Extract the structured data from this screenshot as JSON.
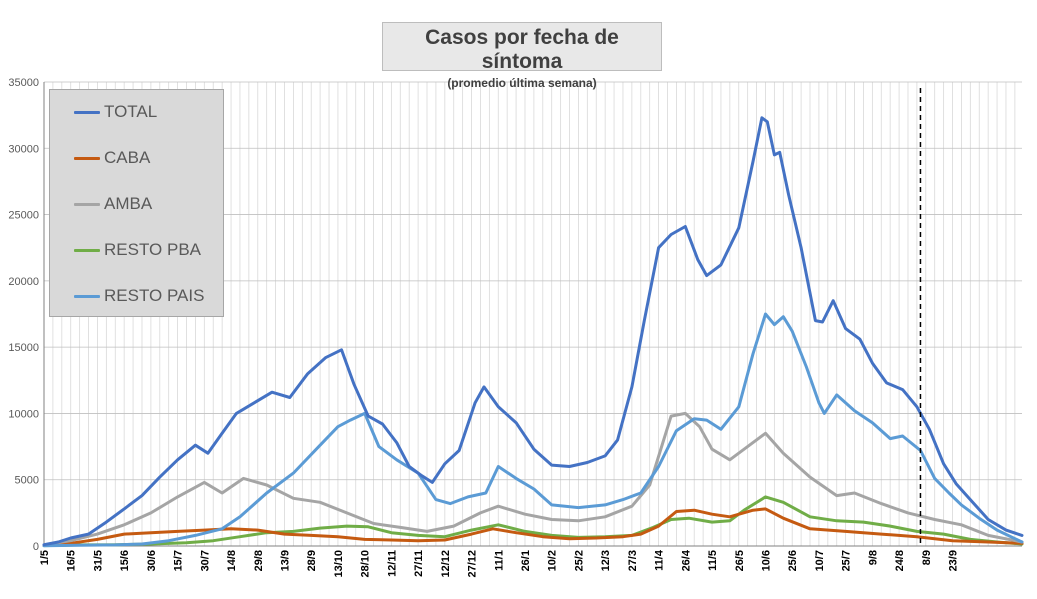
{
  "chart_data": {
    "type": "line",
    "title": "Casos por fecha de síntoma",
    "subtitle": "(promedio última semana)",
    "ylim": [
      0,
      35000
    ],
    "yticks": [
      0,
      5000,
      10000,
      15000,
      20000,
      25000,
      30000,
      35000
    ],
    "x_tick_labels": [
      "1/5",
      "16/5",
      "31/5",
      "15/6",
      "30/6",
      "15/7",
      "30/7",
      "14/8",
      "29/8",
      "13/9",
      "28/9",
      "13/10",
      "28/10",
      "12/11",
      "27/11",
      "12/12",
      "27/12",
      "11/1",
      "26/1",
      "10/2",
      "25/2",
      "12/3",
      "27/3",
      "11/4",
      "26/4",
      "11/5",
      "26/5",
      "10/6",
      "25/6",
      "10/7",
      "25/7",
      "9/8",
      "24/8",
      "8/9",
      "23/9"
    ],
    "x_unit": "days since 1/5",
    "x_range_days": [
      0,
      499
    ],
    "grid": true,
    "legend_position": "top-left",
    "marker_line_day": 492,
    "series": [
      {
        "name": "TOTAL",
        "color": "#4472c4",
        "points": [
          [
            0,
            100
          ],
          [
            8,
            300
          ],
          [
            15,
            600
          ],
          [
            25,
            900
          ],
          [
            35,
            1800
          ],
          [
            45,
            2800
          ],
          [
            55,
            3800
          ],
          [
            65,
            5200
          ],
          [
            75,
            6500
          ],
          [
            85,
            7600
          ],
          [
            92,
            7000
          ],
          [
            100,
            8500
          ],
          [
            108,
            10000
          ],
          [
            118,
            10800
          ],
          [
            128,
            11600
          ],
          [
            138,
            11200
          ],
          [
            148,
            13000
          ],
          [
            158,
            14200
          ],
          [
            167,
            14800
          ],
          [
            174,
            12200
          ],
          [
            182,
            9800
          ],
          [
            190,
            9200
          ],
          [
            198,
            7800
          ],
          [
            205,
            6000
          ],
          [
            212,
            5300
          ],
          [
            218,
            4800
          ],
          [
            225,
            6200
          ],
          [
            233,
            7200
          ],
          [
            242,
            10800
          ],
          [
            247,
            12000
          ],
          [
            255,
            10500
          ],
          [
            265,
            9300
          ],
          [
            275,
            7300
          ],
          [
            285,
            6100
          ],
          [
            295,
            6000
          ],
          [
            305,
            6300
          ],
          [
            315,
            6800
          ],
          [
            322,
            8000
          ],
          [
            330,
            12000
          ],
          [
            337,
            17000
          ],
          [
            345,
            22500
          ],
          [
            352,
            23500
          ],
          [
            360,
            24100
          ],
          [
            367,
            21600
          ],
          [
            372,
            20400
          ],
          [
            380,
            21200
          ],
          [
            390,
            24000
          ],
          [
            398,
            29000
          ],
          [
            403,
            32300
          ],
          [
            406,
            32000
          ],
          [
            410,
            29500
          ],
          [
            413,
            29700
          ],
          [
            418,
            26500
          ],
          [
            425,
            22500
          ],
          [
            433,
            17000
          ],
          [
            437,
            16900
          ],
          [
            443,
            18500
          ],
          [
            450,
            16400
          ],
          [
            458,
            15600
          ],
          [
            465,
            13800
          ],
          [
            473,
            12300
          ],
          [
            482,
            11800
          ],
          [
            490,
            10500
          ],
          [
            497,
            8800
          ],
          [
            505,
            6200
          ],
          [
            512,
            4700
          ],
          [
            520,
            3500
          ],
          [
            530,
            2000
          ],
          [
            540,
            1200
          ],
          [
            549,
            800
          ]
        ]
      },
      {
        "name": "CABA",
        "color": "#c55a11",
        "points": [
          [
            0,
            50
          ],
          [
            15,
            200
          ],
          [
            30,
            500
          ],
          [
            45,
            900
          ],
          [
            60,
            1000
          ],
          [
            75,
            1100
          ],
          [
            90,
            1200
          ],
          [
            105,
            1300
          ],
          [
            120,
            1200
          ],
          [
            135,
            900
          ],
          [
            150,
            800
          ],
          [
            165,
            700
          ],
          [
            180,
            500
          ],
          [
            195,
            450
          ],
          [
            210,
            400
          ],
          [
            225,
            450
          ],
          [
            240,
            900
          ],
          [
            252,
            1300
          ],
          [
            265,
            1000
          ],
          [
            280,
            700
          ],
          [
            295,
            550
          ],
          [
            310,
            600
          ],
          [
            325,
            700
          ],
          [
            335,
            900
          ],
          [
            345,
            1500
          ],
          [
            355,
            2600
          ],
          [
            365,
            2700
          ],
          [
            375,
            2400
          ],
          [
            385,
            2200
          ],
          [
            398,
            2700
          ],
          [
            405,
            2800
          ],
          [
            415,
            2100
          ],
          [
            430,
            1300
          ],
          [
            450,
            1100
          ],
          [
            470,
            900
          ],
          [
            490,
            700
          ],
          [
            510,
            400
          ],
          [
            530,
            300
          ],
          [
            549,
            200
          ]
        ]
      },
      {
        "name": "AMBA",
        "color": "#a5a5a5",
        "points": [
          [
            0,
            80
          ],
          [
            15,
            400
          ],
          [
            30,
            900
          ],
          [
            45,
            1600
          ],
          [
            60,
            2500
          ],
          [
            75,
            3700
          ],
          [
            90,
            4800
          ],
          [
            100,
            4000
          ],
          [
            112,
            5100
          ],
          [
            125,
            4600
          ],
          [
            140,
            3600
          ],
          [
            155,
            3300
          ],
          [
            170,
            2500
          ],
          [
            185,
            1700
          ],
          [
            200,
            1400
          ],
          [
            215,
            1100
          ],
          [
            230,
            1500
          ],
          [
            245,
            2500
          ],
          [
            255,
            3000
          ],
          [
            270,
            2400
          ],
          [
            285,
            2000
          ],
          [
            300,
            1900
          ],
          [
            315,
            2200
          ],
          [
            330,
            3000
          ],
          [
            340,
            4600
          ],
          [
            352,
            9800
          ],
          [
            360,
            10000
          ],
          [
            368,
            9000
          ],
          [
            375,
            7300
          ],
          [
            385,
            6500
          ],
          [
            398,
            7800
          ],
          [
            405,
            8500
          ],
          [
            415,
            7000
          ],
          [
            430,
            5200
          ],
          [
            445,
            3800
          ],
          [
            455,
            4000
          ],
          [
            470,
            3200
          ],
          [
            485,
            2500
          ],
          [
            500,
            2000
          ],
          [
            515,
            1600
          ],
          [
            530,
            800
          ],
          [
            549,
            300
          ]
        ]
      },
      {
        "name": "RESTO PBA",
        "color": "#70ad47",
        "points": [
          [
            0,
            30
          ],
          [
            20,
            80
          ],
          [
            40,
            100
          ],
          [
            60,
            150
          ],
          [
            80,
            250
          ],
          [
            95,
            400
          ],
          [
            110,
            700
          ],
          [
            125,
            1000
          ],
          [
            140,
            1100
          ],
          [
            155,
            1350
          ],
          [
            170,
            1500
          ],
          [
            182,
            1450
          ],
          [
            195,
            1000
          ],
          [
            210,
            800
          ],
          [
            225,
            700
          ],
          [
            240,
            1200
          ],
          [
            255,
            1600
          ],
          [
            270,
            1100
          ],
          [
            285,
            800
          ],
          [
            300,
            650
          ],
          [
            315,
            700
          ],
          [
            330,
            800
          ],
          [
            342,
            1400
          ],
          [
            352,
            2000
          ],
          [
            362,
            2100
          ],
          [
            375,
            1800
          ],
          [
            385,
            1900
          ],
          [
            393,
            2700
          ],
          [
            405,
            3700
          ],
          [
            415,
            3300
          ],
          [
            430,
            2200
          ],
          [
            445,
            1900
          ],
          [
            460,
            1800
          ],
          [
            475,
            1500
          ],
          [
            490,
            1100
          ],
          [
            505,
            900
          ],
          [
            520,
            500
          ],
          [
            535,
            300
          ],
          [
            549,
            150
          ]
        ]
      },
      {
        "name": "RESTO PAIS",
        "color": "#5b9bd5",
        "points": [
          [
            0,
            20
          ],
          [
            20,
            50
          ],
          [
            40,
            80
          ],
          [
            55,
            150
          ],
          [
            70,
            400
          ],
          [
            85,
            800
          ],
          [
            100,
            1300
          ],
          [
            110,
            2200
          ],
          [
            125,
            4000
          ],
          [
            140,
            5500
          ],
          [
            155,
            7600
          ],
          [
            165,
            9000
          ],
          [
            172,
            9500
          ],
          [
            180,
            10000
          ],
          [
            188,
            7500
          ],
          [
            198,
            6500
          ],
          [
            210,
            5500
          ],
          [
            220,
            3500
          ],
          [
            228,
            3200
          ],
          [
            238,
            3700
          ],
          [
            248,
            4000
          ],
          [
            255,
            6000
          ],
          [
            265,
            5100
          ],
          [
            275,
            4300
          ],
          [
            285,
            3100
          ],
          [
            300,
            2900
          ],
          [
            315,
            3100
          ],
          [
            325,
            3500
          ],
          [
            335,
            4000
          ],
          [
            345,
            6000
          ],
          [
            355,
            8700
          ],
          [
            365,
            9600
          ],
          [
            372,
            9500
          ],
          [
            380,
            8800
          ],
          [
            390,
            10500
          ],
          [
            398,
            14500
          ],
          [
            405,
            17500
          ],
          [
            410,
            16700
          ],
          [
            415,
            17300
          ],
          [
            420,
            16200
          ],
          [
            428,
            13500
          ],
          [
            435,
            10800
          ],
          [
            438,
            10000
          ],
          [
            445,
            11400
          ],
          [
            455,
            10200
          ],
          [
            465,
            9300
          ],
          [
            475,
            8100
          ],
          [
            482,
            8300
          ],
          [
            492,
            7200
          ],
          [
            500,
            5100
          ],
          [
            508,
            4000
          ],
          [
            515,
            3100
          ],
          [
            525,
            2100
          ],
          [
            535,
            1200
          ],
          [
            549,
            300
          ]
        ]
      }
    ]
  }
}
